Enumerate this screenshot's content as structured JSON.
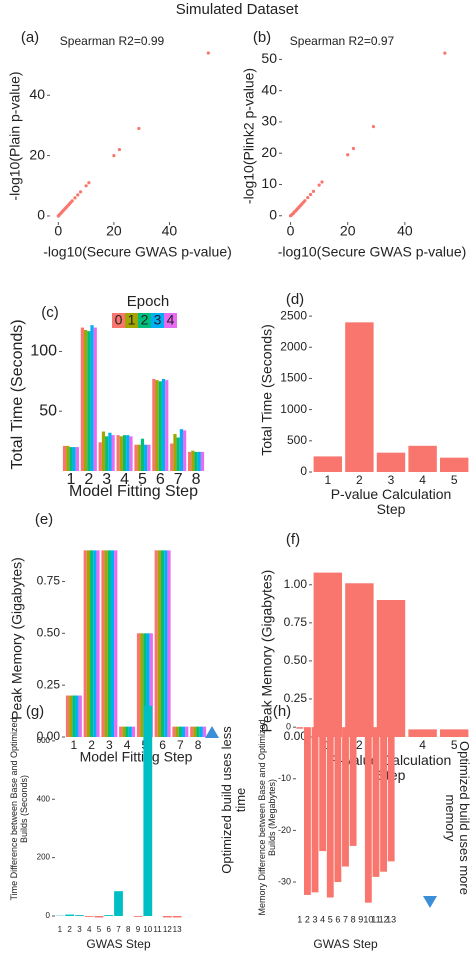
{
  "title": "Simulated Dataset",
  "chart_data": [
    {
      "type": "scatter",
      "panel": "(a)",
      "annotation": "Spearman R2=0.99",
      "xlabel": "-log10(Secure GWAS p-value)",
      "ylabel": "-log10(Plain p-value)",
      "color": "#f8766d",
      "x": [
        0,
        0.3,
        0.6,
        1,
        1.3,
        1.7,
        2,
        2.4,
        2.8,
        3.2,
        3.6,
        4,
        4.5,
        5,
        6,
        7,
        8,
        10,
        11,
        20,
        22,
        29,
        54
      ],
      "y": [
        0,
        0.3,
        0.6,
        1,
        1.3,
        1.7,
        2,
        2.4,
        2.8,
        3.2,
        3.6,
        4,
        4.5,
        5,
        6,
        7,
        8,
        10,
        11,
        20,
        22,
        29,
        54
      ],
      "xlim": [
        -3,
        60
      ],
      "ylim": [
        -2,
        55
      ],
      "xticks": [
        0,
        20,
        40
      ],
      "yticks": [
        0,
        20,
        40
      ]
    },
    {
      "type": "scatter",
      "panel": "(b)",
      "annotation": "Spearman R2=0.97",
      "xlabel": "-log10(Secure GWAS p-value)",
      "ylabel": "-log10(Plink2 p-value)",
      "color": "#f8766d",
      "x": [
        0,
        0.3,
        0.6,
        1,
        1.3,
        1.7,
        2,
        2.4,
        2.8,
        3.2,
        3.6,
        4,
        4.5,
        5,
        6,
        7,
        8,
        10,
        11,
        20,
        22,
        29,
        54
      ],
      "y": [
        0,
        0.2,
        0.5,
        0.8,
        1.2,
        1.5,
        1.8,
        2.2,
        2.6,
        3,
        3.4,
        3.8,
        4.3,
        4.8,
        5.8,
        6.8,
        7.8,
        9.8,
        10.8,
        19.5,
        21.5,
        28.5,
        52
      ],
      "xlim": [
        -3,
        60
      ],
      "ylim": [
        -2,
        53
      ],
      "xticks": [
        0,
        20,
        40
      ],
      "yticks": [
        0,
        10,
        20,
        30,
        40,
        50
      ]
    },
    {
      "type": "grouped_bar",
      "panel": "(c)",
      "xlabel": "Model Fitting Step",
      "ylabel": "Total Time (Seconds)",
      "legend_title": "Epoch",
      "categories": [
        "1",
        "2",
        "3",
        "4",
        "5",
        "6",
        "7",
        "8"
      ],
      "series": [
        {
          "name": "0",
          "color": "#f8766d",
          "values": [
            21,
            120,
            24,
            30,
            22,
            77,
            23,
            16
          ]
        },
        {
          "name": "1",
          "color": "#a3a500",
          "values": [
            21,
            118,
            33,
            29,
            22,
            76,
            31,
            17
          ]
        },
        {
          "name": "2",
          "color": "#00bf7d",
          "values": [
            20,
            117,
            29,
            30,
            27,
            75,
            28,
            16
          ]
        },
        {
          "name": "3",
          "color": "#00b0f6",
          "values": [
            20,
            122,
            32,
            30,
            22,
            77,
            35,
            16
          ]
        },
        {
          "name": "4",
          "color": "#e76bf3",
          "values": [
            20,
            120,
            30,
            29,
            22,
            76,
            34,
            16
          ]
        }
      ],
      "ylim": [
        0,
        128
      ],
      "yticks": [
        50,
        100
      ]
    },
    {
      "type": "bar",
      "panel": "(d)",
      "xlabel": "P-value Calculation Step",
      "ylabel": "Total Time (Seconds)",
      "color": "#f8766d",
      "categories": [
        "1",
        "2",
        "3",
        "4",
        "5"
      ],
      "values": [
        250,
        2400,
        310,
        420,
        230
      ],
      "ylim": [
        0,
        2630
      ],
      "yticks": [
        0,
        500,
        1000,
        1500,
        2000,
        2500
      ]
    },
    {
      "type": "grouped_bar",
      "panel": "(e)",
      "xlabel": "Model Fitting Step",
      "ylabel": "Peak Memory (Gigabytes)",
      "categories": [
        "1",
        "2",
        "3",
        "4",
        "5",
        "6",
        "7",
        "8"
      ],
      "series": [
        {
          "name": "0",
          "color": "#f8766d",
          "values": [
            0.2,
            0.9,
            0.9,
            0.05,
            0.5,
            0.9,
            0.05,
            0.05
          ]
        },
        {
          "name": "1",
          "color": "#a3a500",
          "values": [
            0.2,
            0.9,
            0.9,
            0.05,
            0.5,
            0.9,
            0.05,
            0.05
          ]
        },
        {
          "name": "2",
          "color": "#00bf7d",
          "values": [
            0.2,
            0.9,
            0.9,
            0.05,
            0.5,
            0.9,
            0.05,
            0.05
          ]
        },
        {
          "name": "3",
          "color": "#00b0f6",
          "values": [
            0.2,
            0.9,
            0.9,
            0.05,
            0.5,
            0.9,
            0.05,
            0.05
          ]
        },
        {
          "name": "4",
          "color": "#e76bf3",
          "values": [
            0.2,
            0.9,
            0.9,
            0.05,
            0.5,
            0.9,
            0.05,
            0.05
          ]
        }
      ],
      "ylim": [
        0,
        0.95
      ],
      "yticks": [
        {
          "value": 0,
          "label": "0.00"
        },
        {
          "value": 0.25,
          "label": "0.25"
        },
        {
          "value": 0.5,
          "label": "0.50"
        },
        {
          "value": 0.75,
          "label": "0.75"
        }
      ]
    },
    {
      "type": "bar",
      "panel": "(f)",
      "xlabel": "P-value Calculation Step",
      "ylabel": "Peak Memory (Gigabytes)",
      "color": "#f8766d",
      "categories": [
        "1",
        "2",
        "3",
        "4",
        "5"
      ],
      "values": [
        1.08,
        1.01,
        0.9,
        0.05,
        0.05
      ],
      "ylim": [
        0,
        1.13
      ],
      "yticks": [
        {
          "value": 0,
          "label": "0.00"
        },
        {
          "value": 0.25,
          "label": "0.25"
        },
        {
          "value": 0.5,
          "label": "0.50"
        },
        {
          "value": 0.75,
          "label": "0.75"
        },
        {
          "value": 1,
          "label": "1.00"
        }
      ]
    },
    {
      "type": "bar",
      "panel": "(g)",
      "xlabel": "GWAS Step",
      "ylabel": "Time Difference between Base and Optimized Builds (Seconds)",
      "annotation": "Optimized build uses less time",
      "categories": [
        "1",
        "2",
        "3",
        "4",
        "5",
        "6",
        "7",
        "8",
        "9",
        "10",
        "11",
        "12",
        "13"
      ],
      "values": [
        1,
        5,
        3,
        -3,
        -5,
        3,
        85,
        0,
        -3,
        720,
        0,
        -5,
        -5
      ],
      "colors": [
        "#00bfc4",
        "#00bfc4",
        "#00bfc4",
        "#f8766d",
        "#f8766d",
        "#00bfc4",
        "#00bfc4",
        "#00bfc4",
        "#f8766d",
        "#00bfc4",
        "#00bfc4",
        "#f8766d",
        "#f8766d"
      ],
      "ylim": [
        -24,
        757
      ],
      "yticks": [
        0,
        200,
        400,
        600
      ]
    },
    {
      "type": "bar",
      "panel": "(h)",
      "xlabel": "GWAS Step",
      "ylabel": "Memory Difference between Base and Optimized Builds (Megabytes)",
      "annotation": "Optimized build uses more memory",
      "color": "#f8766d",
      "categories": [
        "1",
        "2",
        "3",
        "4",
        "5",
        "6",
        "7",
        "8",
        "9",
        "10",
        "11",
        "12",
        "13"
      ],
      "values": [
        -0.3,
        -32.5,
        -32,
        -24,
        -33,
        -30,
        -27,
        -23,
        -0.3,
        -34,
        -29,
        -28,
        -26
      ],
      "ylim": [
        -36,
        1
      ],
      "yticks": [
        0,
        -10,
        -20,
        -30
      ]
    }
  ]
}
